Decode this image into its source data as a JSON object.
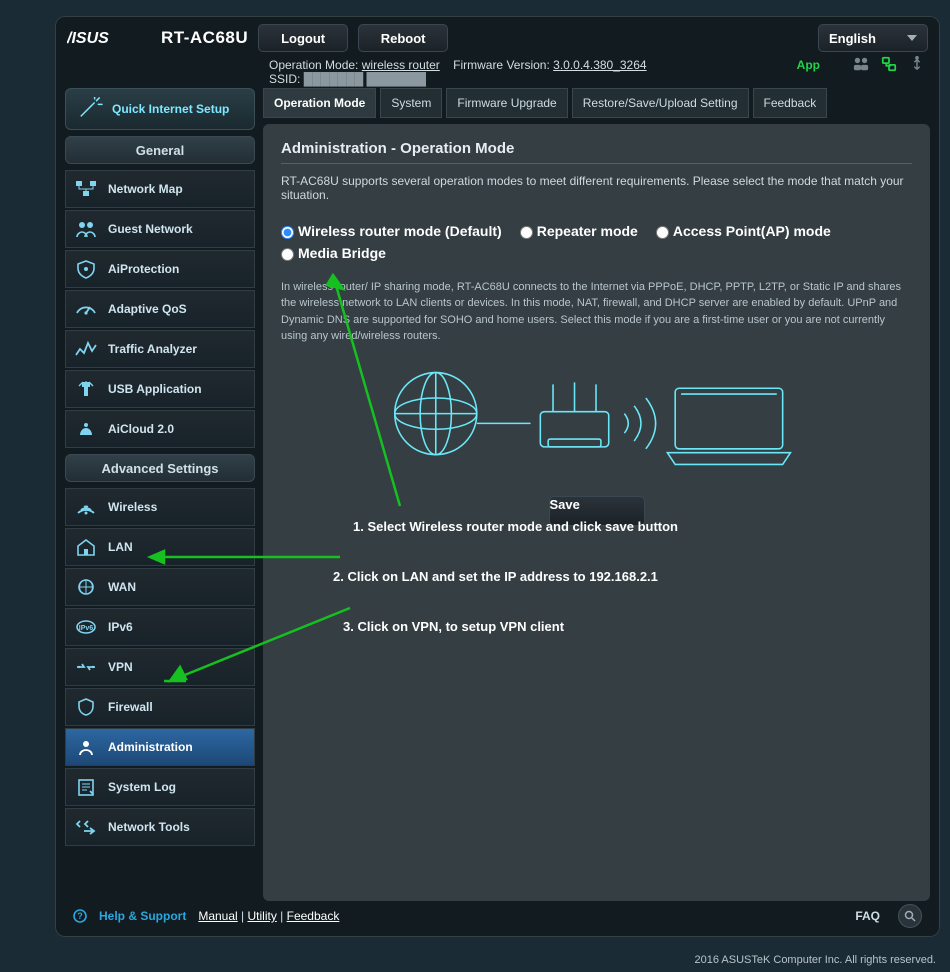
{
  "colors": {
    "bg": "#1a2b36",
    "panel": "#343e43",
    "accent": "#7fe8ff",
    "green": "#00d030",
    "arrow": "#16c020"
  },
  "header": {
    "model": "RT-AC68U",
    "logout": "Logout",
    "reboot": "Reboot",
    "language": "English"
  },
  "status": {
    "op_mode_label": "Operation Mode:",
    "op_mode_value": "wireless router",
    "fw_label": "Firmware Version:",
    "fw_value": "3.0.0.4.380_3264",
    "ssid_label": "SSID:",
    "ssid_value": "███████  ███████",
    "app": "App"
  },
  "qis": {
    "label": "Quick Internet Setup"
  },
  "sections": {
    "general": "General",
    "advanced": "Advanced Settings"
  },
  "general_items": [
    "Network Map",
    "Guest Network",
    "AiProtection",
    "Adaptive QoS",
    "Traffic Analyzer",
    "USB Application",
    "AiCloud 2.0"
  ],
  "advanced_items": [
    "Wireless",
    "LAN",
    "WAN",
    "IPv6",
    "VPN",
    "Firewall",
    "Administration",
    "System Log",
    "Network Tools"
  ],
  "advanced_active_index": 6,
  "tabs": [
    "Operation Mode",
    "System",
    "Firmware Upgrade",
    "Restore/Save/Upload Setting",
    "Feedback"
  ],
  "tab_active_index": 0,
  "panel": {
    "title": "Administration - Operation Mode",
    "subtitle": "RT-AC68U supports several operation modes to meet different requirements. Please select the mode that match your situation.",
    "modes": [
      "Wireless router mode (Default)",
      "Repeater mode",
      "Access Point(AP) mode",
      "Media Bridge"
    ],
    "mode_selected_index": 0,
    "mode_desc": "In wireless router/ IP sharing mode, RT-AC68U connects to the Internet via PPPoE, DHCP, PPTP, L2TP, or Static IP and shares the wireless network to LAN clients or devices. In this mode, NAT, firewall, and DHCP server are enabled by default. UPnP and Dynamic DNS are supported for SOHO and home users. Select this mode if you are a first-time user or you are not currently using any wired/wireless routers.",
    "save": "Save"
  },
  "annotations": {
    "a1": "1. Select Wireless router mode and click save button",
    "a2": "2. Click on LAN and set the IP address to 192.168.2.1",
    "a3": "3. Click on VPN, to setup VPN client"
  },
  "footer": {
    "help": "Help & Support",
    "manual": "Manual",
    "utility": "Utility",
    "feedback": "Feedback",
    "faq": "FAQ"
  },
  "copyright": "2016 ASUSTeK Computer Inc. All rights reserved."
}
